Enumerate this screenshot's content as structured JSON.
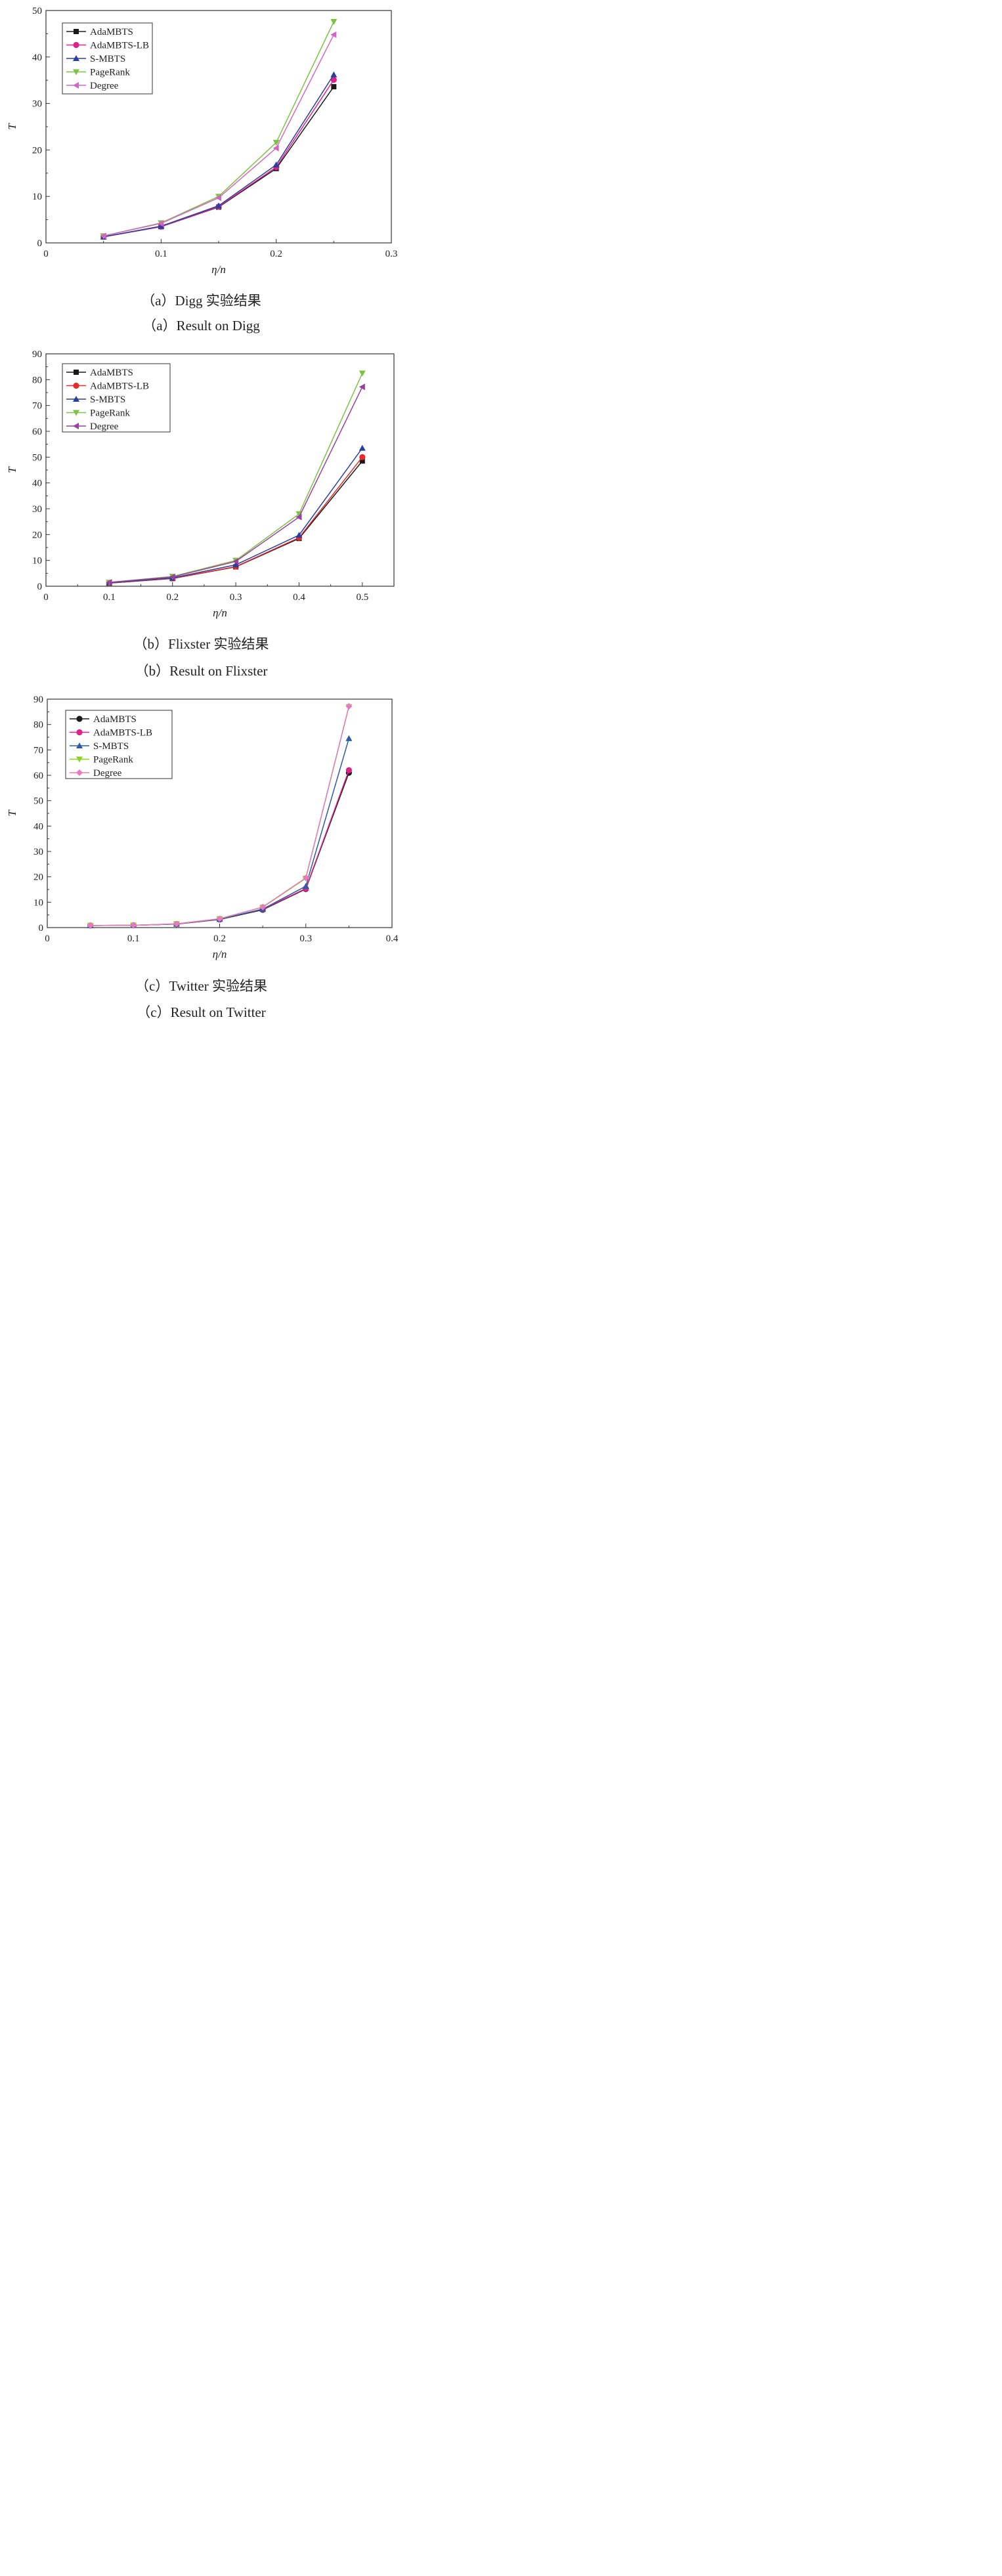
{
  "chart_data": [
    {
      "type": "line",
      "ylabel": "T",
      "xlabel": "η/n",
      "xlim": [
        0,
        0.3
      ],
      "ylim": [
        0,
        50
      ],
      "xticks": [
        "0",
        "0.1",
        "0.2",
        "0.3"
      ],
      "yticks": [
        "0",
        "10",
        "20",
        "30",
        "40",
        "50"
      ],
      "x": [
        0.05,
        0.1,
        0.15,
        0.2,
        0.25
      ],
      "legend": "top-left",
      "series": [
        {
          "name": "AdaMBTS",
          "color": "#1a1a1a",
          "marker": "square",
          "values": [
            1.3,
            3.5,
            7.7,
            16.0,
            33.6
          ]
        },
        {
          "name": "AdaMBTS-LB",
          "color": "#e0218a",
          "marker": "circle",
          "values": [
            1.3,
            3.5,
            7.8,
            16.3,
            35.1
          ]
        },
        {
          "name": "S-MBTS",
          "color": "#2a3f9d",
          "marker": "triangle-up",
          "values": [
            1.3,
            3.6,
            8.0,
            16.8,
            36.2
          ]
        },
        {
          "name": "PageRank",
          "color": "#7dc242",
          "marker": "triangle-down",
          "values": [
            1.5,
            4.3,
            10.0,
            21.6,
            47.6
          ]
        },
        {
          "name": "Degree",
          "color": "#d466c3",
          "marker": "triangle-left",
          "values": [
            1.5,
            4.2,
            9.7,
            20.4,
            44.8
          ]
        }
      ],
      "caption_cn": "（a）Digg 实验结果",
      "caption_en": "（a）Result on Digg"
    },
    {
      "type": "line",
      "ylabel": "T",
      "xlabel": "η/n",
      "xlim": [
        0,
        0.55
      ],
      "ylim": [
        0,
        90
      ],
      "xticks": [
        "0",
        "0.1",
        "0.2",
        "0.3",
        "0.4",
        "0.5"
      ],
      "yticks": [
        "0",
        "10",
        "20",
        "30",
        "40",
        "50",
        "60",
        "70",
        "80",
        "90"
      ],
      "x": [
        0.1,
        0.2,
        0.3,
        0.4,
        0.5
      ],
      "legend": "top-left",
      "series": [
        {
          "name": "AdaMBTS",
          "color": "#1a1a1a",
          "marker": "square",
          "values": [
            1.2,
            3.0,
            7.5,
            18.5,
            48.5
          ]
        },
        {
          "name": "AdaMBTS-LB",
          "color": "#e52b2b",
          "marker": "circle",
          "values": [
            1.2,
            3.0,
            7.6,
            18.8,
            50.0
          ]
        },
        {
          "name": "S-MBTS",
          "color": "#2a3f9d",
          "marker": "triangle-up",
          "values": [
            1.3,
            3.2,
            8.3,
            19.8,
            53.5
          ]
        },
        {
          "name": "PageRank",
          "color": "#7dc242",
          "marker": "triangle-down",
          "values": [
            1.5,
            3.8,
            10.0,
            28.0,
            82.5
          ]
        },
        {
          "name": "Degree",
          "color": "#9b3fa0",
          "marker": "triangle-left",
          "values": [
            1.5,
            3.6,
            9.6,
            26.8,
            77.2
          ]
        }
      ],
      "caption_cn": "（b）Flixster 实验结果",
      "caption_en": "（b）Result on Flixster"
    },
    {
      "type": "line",
      "ylabel": "T",
      "xlabel": "η/n",
      "xlim": [
        0,
        0.4
      ],
      "ylim": [
        0,
        90
      ],
      "xticks": [
        "0",
        "0.1",
        "0.2",
        "0.3",
        "0.4"
      ],
      "yticks": [
        "0",
        "10",
        "20",
        "30",
        "40",
        "50",
        "60",
        "70",
        "80",
        "90"
      ],
      "x": [
        0.05,
        0.1,
        0.15,
        0.2,
        0.25,
        0.3,
        0.35
      ],
      "legend": "top-left",
      "series": [
        {
          "name": "AdaMBTS",
          "color": "#1a1a1a",
          "marker": "circle",
          "values": [
            0.8,
            0.9,
            1.4,
            3.2,
            7.0,
            15.2,
            61.0
          ]
        },
        {
          "name": "AdaMBTS-LB",
          "color": "#e0218a",
          "marker": "circle",
          "values": [
            0.8,
            0.9,
            1.4,
            3.3,
            7.2,
            15.4,
            62.0
          ]
        },
        {
          "name": "S-MBTS",
          "color": "#2b5aa8",
          "marker": "triangle-up",
          "values": [
            0.8,
            0.9,
            1.4,
            3.3,
            7.3,
            16.3,
            74.5
          ]
        },
        {
          "name": "PageRank",
          "color": "#8fd11f",
          "marker": "triangle-down",
          "values": [
            0.8,
            0.9,
            1.5,
            3.5,
            8.0,
            19.4,
            87.0
          ]
        },
        {
          "name": "Degree",
          "color": "#e878c0",
          "marker": "diamond",
          "values": [
            0.8,
            0.9,
            1.5,
            3.5,
            8.1,
            19.6,
            87.2
          ]
        }
      ],
      "caption_cn": "（c）Twitter 实验结果",
      "caption_en": "（c）Result on Twitter"
    }
  ]
}
